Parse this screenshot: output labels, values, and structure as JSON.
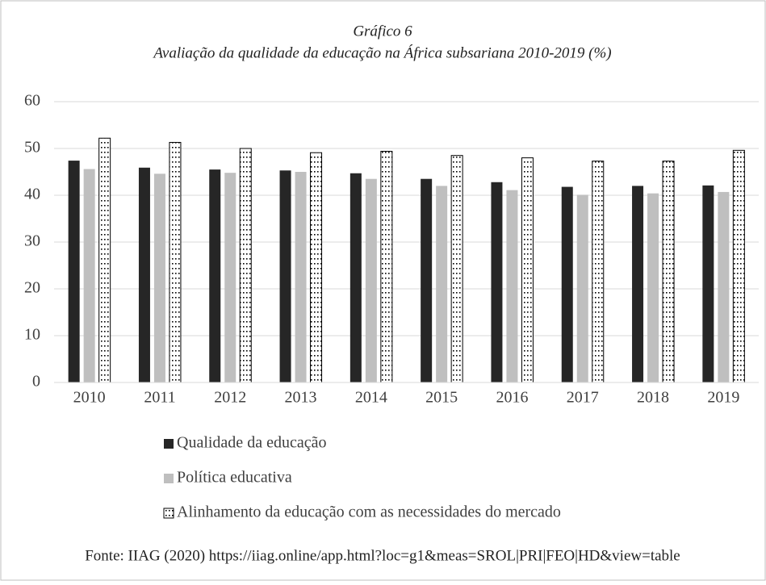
{
  "chart_data": {
    "type": "bar",
    "title": "Gráfico 6",
    "subtitle": "Avaliação da qualidade da educação na África subsariana 2010-2019 (%)",
    "categories": [
      "2010",
      "2011",
      "2012",
      "2013",
      "2014",
      "2015",
      "2016",
      "2017",
      "2018",
      "2019"
    ],
    "series": [
      {
        "name": "Qualidade da educação",
        "color": "#262626",
        "values": [
          47.4,
          45.9,
          45.5,
          45.3,
          44.7,
          43.5,
          42.8,
          41.8,
          42.0,
          42.1
        ]
      },
      {
        "name": "Política educativa",
        "color": "#bfbfbf",
        "values": [
          45.6,
          44.6,
          44.8,
          45.0,
          43.5,
          42.0,
          41.1,
          40.1,
          40.4,
          40.7
        ]
      },
      {
        "name": "Alinhamento da educação com as necessidades do mercado",
        "color": "#000000",
        "pattern": "dotted",
        "values": [
          52.2,
          51.3,
          50.0,
          49.1,
          49.4,
          48.5,
          48.0,
          47.3,
          47.3,
          49.6
        ]
      }
    ],
    "ylim": [
      0,
      60
    ],
    "yticks": [
      0,
      10,
      20,
      30,
      40,
      50,
      60
    ],
    "grid": true,
    "legend": "bottom"
  },
  "source": "Fonte: IIAG (2020) https://iiag.online/app.html?loc=g1&meas=SROL|PRI|FEO|HD&view=table"
}
